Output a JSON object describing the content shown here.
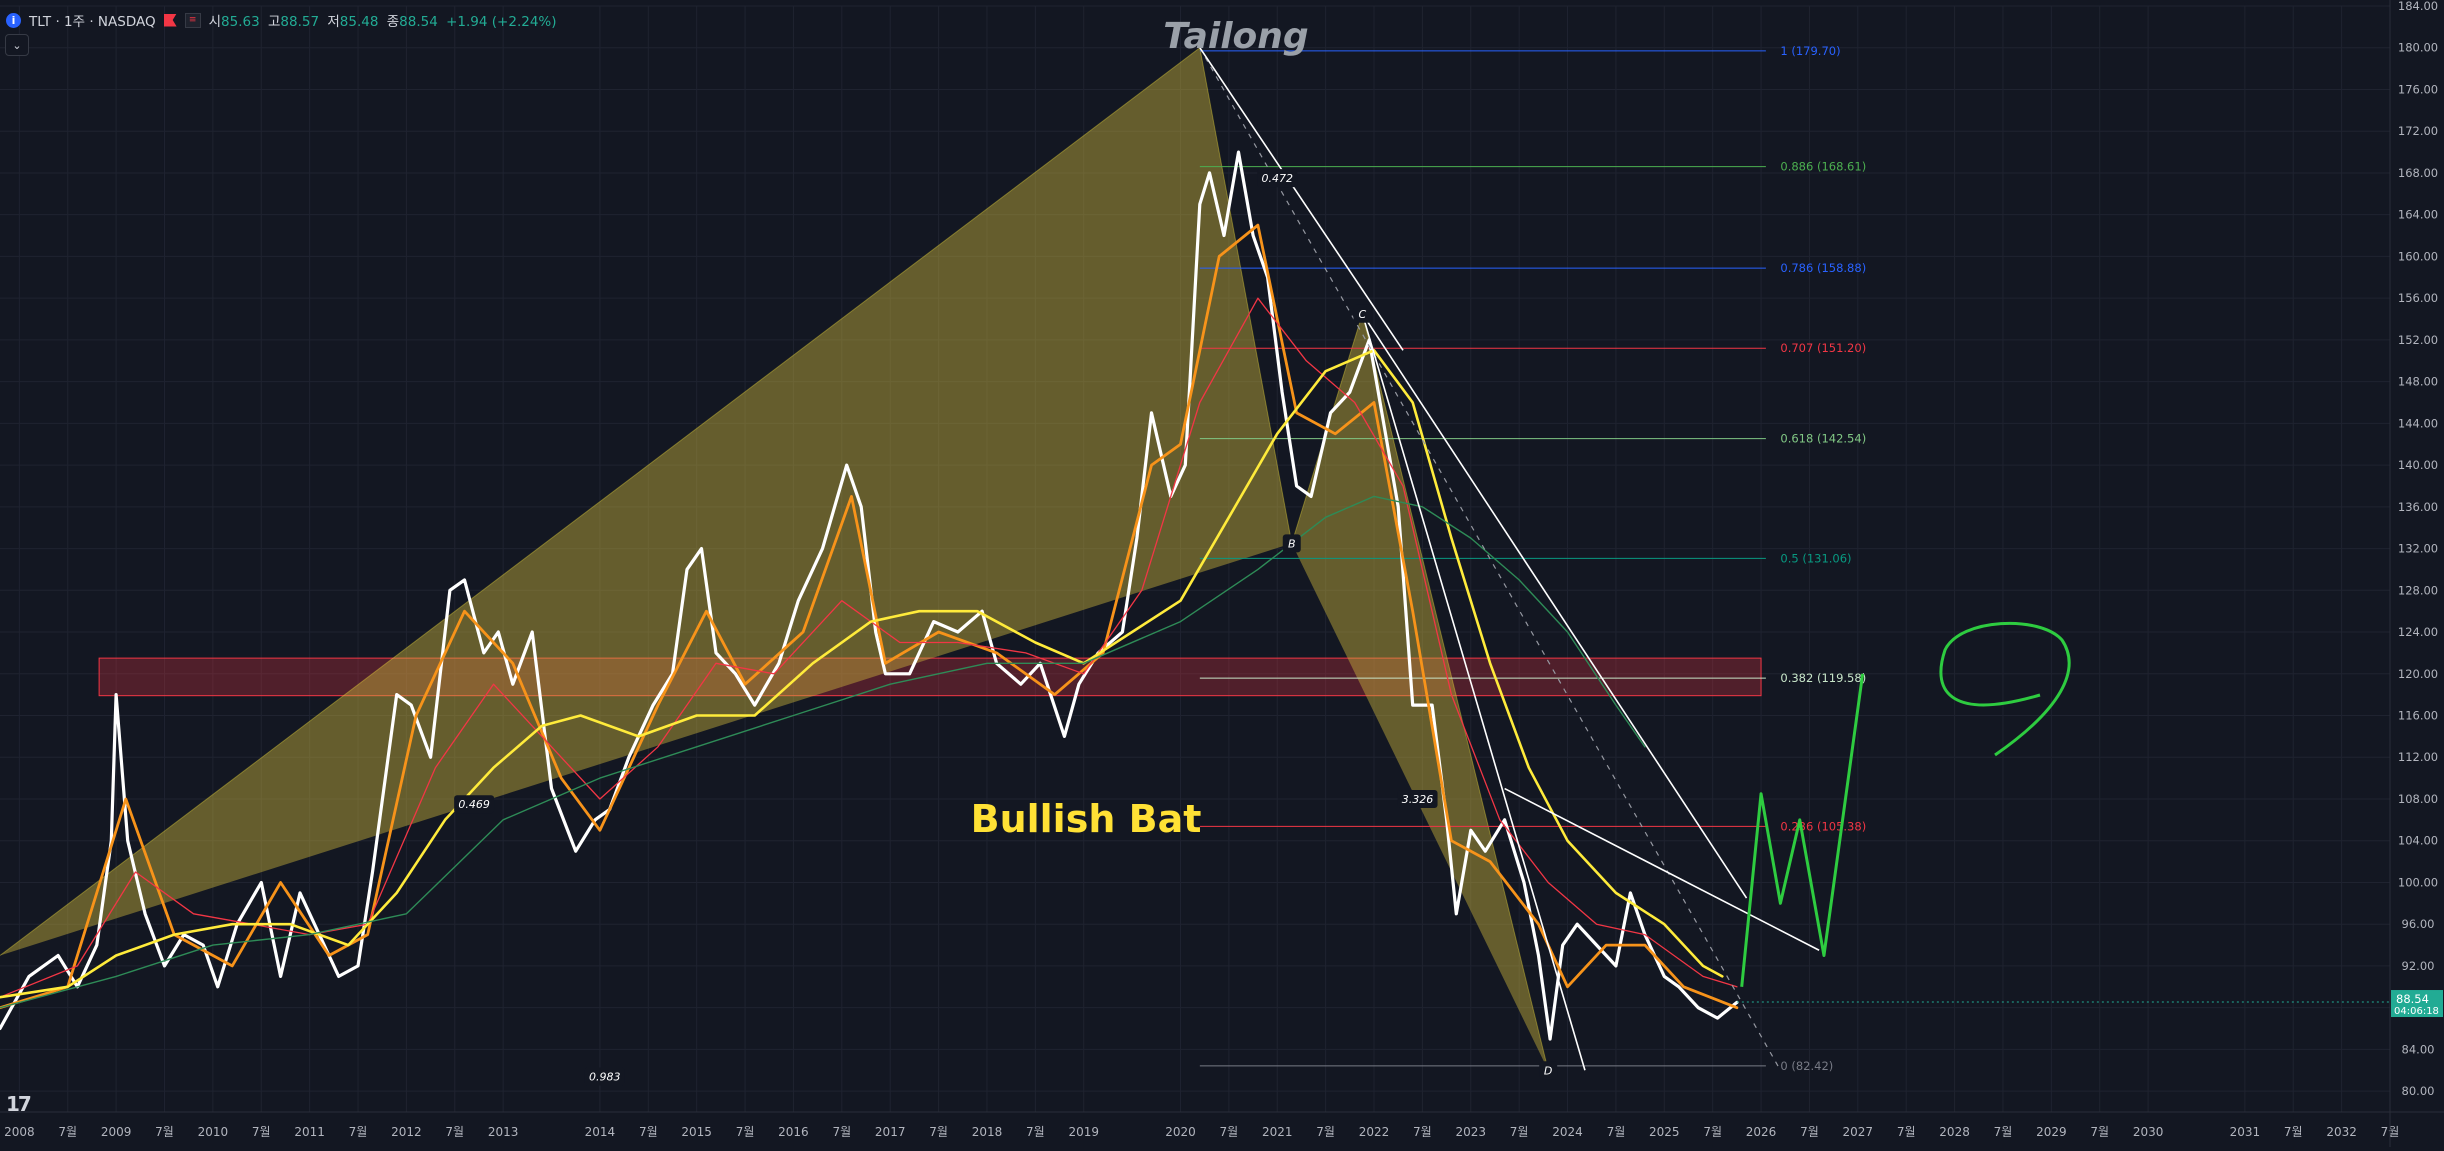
{
  "header": {
    "symbol": "TLT · 1주 · NASDAQ",
    "open_label": "시",
    "open": "85.63",
    "high_label": "고",
    "high": "88.57",
    "low_label": "저",
    "low": "85.48",
    "close_label": "종",
    "close": "88.54",
    "change": "+1.94 (+2.24%)"
  },
  "author": "Tailong",
  "pattern_label": "Bullish Bat",
  "price_tag": {
    "price": "88.54",
    "countdown": "04:06:18",
    "value": 88.54
  },
  "logo_text": "17",
  "chart_data": {
    "type": "line",
    "title": "",
    "ylim": [
      78,
      184
    ],
    "xlim": [
      2007.8,
      2032.5
    ],
    "y_ticks": [
      80,
      84,
      88,
      92,
      96,
      100,
      104,
      108,
      112,
      116,
      120,
      124,
      128,
      132,
      136,
      140,
      144,
      148,
      152,
      156,
      160,
      164,
      168,
      172,
      176,
      180,
      184
    ],
    "x_ticks": [
      {
        "label": "2008",
        "x": 2008.0
      },
      {
        "label": "7월",
        "x": 2008.5
      },
      {
        "label": "2009",
        "x": 2009.0
      },
      {
        "label": "7월",
        "x": 2009.5
      },
      {
        "label": "2010",
        "x": 2010.0
      },
      {
        "label": "7월",
        "x": 2010.5
      },
      {
        "label": "2011",
        "x": 2011.0
      },
      {
        "label": "7월",
        "x": 2011.5
      },
      {
        "label": "2012",
        "x": 2012.0
      },
      {
        "label": "7월",
        "x": 2012.5
      },
      {
        "label": "2013",
        "x": 2013.0
      },
      {
        "label": "2014",
        "x": 2014.0
      },
      {
        "label": "7월",
        "x": 2014.5
      },
      {
        "label": "2015",
        "x": 2015.0
      },
      {
        "label": "7월",
        "x": 2015.5
      },
      {
        "label": "2016",
        "x": 2016.0
      },
      {
        "label": "7월",
        "x": 2016.5
      },
      {
        "label": "2017",
        "x": 2017.0
      },
      {
        "label": "7월",
        "x": 2017.5
      },
      {
        "label": "2018",
        "x": 2018.0
      },
      {
        "label": "7월",
        "x": 2018.5
      },
      {
        "label": "2019",
        "x": 2019.0
      },
      {
        "label": "2020",
        "x": 2020.0
      },
      {
        "label": "7월",
        "x": 2020.5
      },
      {
        "label": "2021",
        "x": 2021.0
      },
      {
        "label": "7월",
        "x": 2021.5
      },
      {
        "label": "2022",
        "x": 2022.0
      },
      {
        "label": "7월",
        "x": 2022.5
      },
      {
        "label": "2023",
        "x": 2023.0
      },
      {
        "label": "7월",
        "x": 2023.5
      },
      {
        "label": "2024",
        "x": 2024.0
      },
      {
        "label": "7월",
        "x": 2024.5
      },
      {
        "label": "2025",
        "x": 2025.0
      },
      {
        "label": "7월",
        "x": 2025.5
      },
      {
        "label": "2026",
        "x": 2026.0
      },
      {
        "label": "7월",
        "x": 2026.5
      },
      {
        "label": "2027",
        "x": 2027.0
      },
      {
        "label": "7월",
        "x": 2027.5
      },
      {
        "label": "2028",
        "x": 2028.0
      },
      {
        "label": "7월",
        "x": 2028.5
      },
      {
        "label": "2029",
        "x": 2029.0
      },
      {
        "label": "7월",
        "x": 2029.5
      },
      {
        "label": "2030",
        "x": 2030.0
      },
      {
        "label": "2031",
        "x": 2031.0
      },
      {
        "label": "7월",
        "x": 2031.5
      },
      {
        "label": "2032",
        "x": 2032.0
      },
      {
        "label": "7월",
        "x": 2032.5
      }
    ],
    "series": [
      {
        "color": "#ffffff",
        "width": 3.2,
        "points": [
          [
            2007.8,
            86
          ],
          [
            2008.1,
            91
          ],
          [
            2008.4,
            93
          ],
          [
            2008.6,
            90
          ],
          [
            2008.8,
            94
          ],
          [
            2008.95,
            104
          ],
          [
            2009.0,
            118
          ],
          [
            2009.12,
            104
          ],
          [
            2009.3,
            97
          ],
          [
            2009.5,
            92
          ],
          [
            2009.7,
            95
          ],
          [
            2009.9,
            94
          ],
          [
            2010.05,
            90
          ],
          [
            2010.25,
            96
          ],
          [
            2010.5,
            100
          ],
          [
            2010.7,
            91
          ],
          [
            2010.9,
            99
          ],
          [
            2011.1,
            95
          ],
          [
            2011.3,
            91
          ],
          [
            2011.5,
            92
          ],
          [
            2011.65,
            101
          ],
          [
            2011.9,
            118
          ],
          [
            2012.05,
            117
          ],
          [
            2012.25,
            112
          ],
          [
            2012.45,
            128
          ],
          [
            2012.6,
            129
          ],
          [
            2012.8,
            122
          ],
          [
            2012.95,
            124
          ],
          [
            2013.1,
            119
          ],
          [
            2013.3,
            124
          ],
          [
            2013.5,
            109
          ],
          [
            2013.75,
            103
          ],
          [
            2013.95,
            106
          ],
          [
            2014.1,
            107
          ],
          [
            2014.3,
            112
          ],
          [
            2014.55,
            117
          ],
          [
            2014.75,
            120
          ],
          [
            2014.9,
            130
          ],
          [
            2015.05,
            132
          ],
          [
            2015.2,
            122
          ],
          [
            2015.4,
            120
          ],
          [
            2015.6,
            117
          ],
          [
            2015.85,
            121
          ],
          [
            2016.05,
            127
          ],
          [
            2016.3,
            132
          ],
          [
            2016.55,
            140
          ],
          [
            2016.7,
            136
          ],
          [
            2016.85,
            124
          ],
          [
            2016.95,
            120
          ],
          [
            2017.2,
            120
          ],
          [
            2017.45,
            125
          ],
          [
            2017.7,
            124
          ],
          [
            2017.95,
            126
          ],
          [
            2018.1,
            121
          ],
          [
            2018.35,
            119
          ],
          [
            2018.55,
            121
          ],
          [
            2018.8,
            114
          ],
          [
            2018.95,
            119
          ],
          [
            2019.15,
            122
          ],
          [
            2019.4,
            124
          ],
          [
            2019.55,
            133
          ],
          [
            2019.7,
            145
          ],
          [
            2019.9,
            137
          ],
          [
            2020.05,
            140
          ],
          [
            2020.2,
            165
          ],
          [
            2020.3,
            168
          ],
          [
            2020.45,
            162
          ],
          [
            2020.6,
            170
          ],
          [
            2020.75,
            162
          ],
          [
            2020.9,
            158
          ],
          [
            2021.05,
            147
          ],
          [
            2021.2,
            138
          ],
          [
            2021.35,
            137
          ],
          [
            2021.55,
            145
          ],
          [
            2021.75,
            147
          ],
          [
            2021.95,
            152
          ],
          [
            2022.1,
            144
          ],
          [
            2022.25,
            136
          ],
          [
            2022.4,
            117
          ],
          [
            2022.6,
            117
          ],
          [
            2022.75,
            106
          ],
          [
            2022.85,
            97
          ],
          [
            2023.0,
            105
          ],
          [
            2023.15,
            103
          ],
          [
            2023.35,
            106
          ],
          [
            2023.55,
            100
          ],
          [
            2023.7,
            93
          ],
          [
            2023.82,
            85
          ],
          [
            2023.95,
            94
          ],
          [
            2024.1,
            96
          ],
          [
            2024.3,
            94
          ],
          [
            2024.5,
            92
          ],
          [
            2024.65,
            99
          ],
          [
            2024.8,
            95
          ],
          [
            2025.0,
            91
          ],
          [
            2025.15,
            90
          ],
          [
            2025.35,
            88
          ],
          [
            2025.55,
            87
          ],
          [
            2025.75,
            88.5
          ]
        ]
      },
      {
        "color": "#f7931a",
        "width": 2.8,
        "points": [
          [
            2007.8,
            88
          ],
          [
            2008.5,
            90
          ],
          [
            2009.1,
            108
          ],
          [
            2009.6,
            95
          ],
          [
            2010.2,
            92
          ],
          [
            2010.7,
            100
          ],
          [
            2011.2,
            93
          ],
          [
            2011.6,
            95
          ],
          [
            2012.1,
            116
          ],
          [
            2012.6,
            126
          ],
          [
            2013.1,
            121
          ],
          [
            2013.6,
            110
          ],
          [
            2014.0,
            105
          ],
          [
            2014.6,
            117
          ],
          [
            2015.1,
            126
          ],
          [
            2015.5,
            119
          ],
          [
            2016.1,
            124
          ],
          [
            2016.6,
            137
          ],
          [
            2016.95,
            121
          ],
          [
            2017.5,
            124
          ],
          [
            2018.1,
            122
          ],
          [
            2018.7,
            118
          ],
          [
            2019.2,
            122
          ],
          [
            2019.7,
            140
          ],
          [
            2020.0,
            142
          ],
          [
            2020.4,
            160
          ],
          [
            2020.8,
            163
          ],
          [
            2021.2,
            145
          ],
          [
            2021.6,
            143
          ],
          [
            2022.0,
            146
          ],
          [
            2022.4,
            126
          ],
          [
            2022.8,
            104
          ],
          [
            2023.2,
            102
          ],
          [
            2023.7,
            96
          ],
          [
            2024.0,
            90
          ],
          [
            2024.4,
            94
          ],
          [
            2024.8,
            94
          ],
          [
            2025.2,
            90
          ],
          [
            2025.75,
            88
          ]
        ]
      },
      {
        "color": "#f23645",
        "width": 1.3,
        "points": [
          [
            2007.8,
            89
          ],
          [
            2008.6,
            92
          ],
          [
            2009.2,
            101
          ],
          [
            2009.8,
            97
          ],
          [
            2010.4,
            96
          ],
          [
            2011.0,
            95
          ],
          [
            2011.6,
            96
          ],
          [
            2012.3,
            111
          ],
          [
            2012.9,
            119
          ],
          [
            2013.5,
            113
          ],
          [
            2014.0,
            108
          ],
          [
            2014.6,
            113
          ],
          [
            2015.2,
            121
          ],
          [
            2015.8,
            120
          ],
          [
            2016.5,
            127
          ],
          [
            2017.1,
            123
          ],
          [
            2017.7,
            123
          ],
          [
            2018.4,
            122
          ],
          [
            2019.0,
            120
          ],
          [
            2019.6,
            128
          ],
          [
            2020.2,
            146
          ],
          [
            2020.8,
            156
          ],
          [
            2021.3,
            150
          ],
          [
            2021.8,
            146
          ],
          [
            2022.3,
            138
          ],
          [
            2022.8,
            118
          ],
          [
            2023.3,
            106
          ],
          [
            2023.8,
            100
          ],
          [
            2024.3,
            96
          ],
          [
            2024.8,
            95
          ],
          [
            2025.4,
            91
          ],
          [
            2025.75,
            90
          ]
        ]
      },
      {
        "color": "#ffeb3b",
        "width": 2.6,
        "points": [
          [
            2007.8,
            89
          ],
          [
            2008.5,
            90
          ],
          [
            2009.0,
            93
          ],
          [
            2009.6,
            95
          ],
          [
            2010.2,
            96
          ],
          [
            2010.8,
            96
          ],
          [
            2011.4,
            94
          ],
          [
            2011.9,
            99
          ],
          [
            2012.4,
            106
          ],
          [
            2012.9,
            111
          ],
          [
            2013.4,
            115
          ],
          [
            2013.8,
            116
          ],
          [
            2014.4,
            114
          ],
          [
            2015.0,
            116
          ],
          [
            2015.6,
            116
          ],
          [
            2016.2,
            121
          ],
          [
            2016.8,
            125
          ],
          [
            2017.3,
            126
          ],
          [
            2017.9,
            126
          ],
          [
            2018.5,
            123
          ],
          [
            2019.0,
            121
          ],
          [
            2019.5,
            124
          ],
          [
            2020.0,
            127
          ],
          [
            2020.5,
            135
          ],
          [
            2021.0,
            143
          ],
          [
            2021.5,
            149
          ],
          [
            2022.0,
            151
          ],
          [
            2022.4,
            146
          ],
          [
            2022.8,
            133
          ],
          [
            2023.2,
            121
          ],
          [
            2023.6,
            111
          ],
          [
            2024.0,
            104
          ],
          [
            2024.5,
            99
          ],
          [
            2025.0,
            96
          ],
          [
            2025.4,
            92
          ],
          [
            2025.6,
            91
          ]
        ]
      },
      {
        "color": "#2e8b57",
        "width": 1.4,
        "points": [
          [
            2007.8,
            88
          ],
          [
            2009.0,
            91
          ],
          [
            2010.0,
            94
          ],
          [
            2011.0,
            95
          ],
          [
            2012.0,
            97
          ],
          [
            2013.0,
            106
          ],
          [
            2014.0,
            110
          ],
          [
            2015.0,
            113
          ],
          [
            2016.0,
            116
          ],
          [
            2017.0,
            119
          ],
          [
            2018.0,
            121
          ],
          [
            2019.0,
            121
          ],
          [
            2020.0,
            125
          ],
          [
            2020.8,
            130
          ],
          [
            2021.5,
            135
          ],
          [
            2022.0,
            137
          ],
          [
            2022.5,
            136
          ],
          [
            2023.0,
            133
          ],
          [
            2023.5,
            129
          ],
          [
            2024.0,
            124
          ],
          [
            2024.5,
            117
          ],
          [
            2024.8,
            113
          ]
        ]
      }
    ],
    "fib_levels": [
      {
        "ratio": "1",
        "price": 179.7,
        "label": "1 (179.70)",
        "color": "#2962ff"
      },
      {
        "ratio": "0.886",
        "price": 168.61,
        "label": "0.886 (168.61)",
        "color": "#4caf50"
      },
      {
        "ratio": "0.786",
        "price": 158.88,
        "label": "0.786 (158.88)",
        "color": "#2962ff"
      },
      {
        "ratio": "0.707",
        "price": 151.2,
        "label": "0.707 (151.20)",
        "color": "#f23645"
      },
      {
        "ratio": "0.618",
        "price": 142.54,
        "label": "0.618 (142.54)",
        "color": "#81c784"
      },
      {
        "ratio": "0.5",
        "price": 131.06,
        "label": "0.5 (131.06)",
        "color": "#089981"
      },
      {
        "ratio": "0.382",
        "price": 119.58,
        "label": "0.382 (119.58)",
        "color": "#c8e6c9"
      },
      {
        "ratio": "0.236",
        "price": 105.38,
        "label": "0.236 (105.38)",
        "color": "#f23645"
      },
      {
        "ratio": "0",
        "price": 82.42,
        "label": "0 (82.42)",
        "color": "#787b86"
      }
    ],
    "harmonic_points": [
      {
        "label": "C",
        "x": 2021.88,
        "y": 154.5
      },
      {
        "label": "B",
        "x": 2021.15,
        "y": 132.5
      },
      {
        "label": "D",
        "x": 2023.8,
        "y": 82.0
      }
    ],
    "ratio_labels": [
      {
        "label": "0.472",
        "x": 2021.0,
        "y": 167.5
      },
      {
        "label": "0.469",
        "x": 2012.7,
        "y": 107.5
      },
      {
        "label": "3.326",
        "x": 2022.45,
        "y": 108.0
      },
      {
        "label": "0.983",
        "x": 2014.05,
        "y": 81.4
      }
    ]
  }
}
